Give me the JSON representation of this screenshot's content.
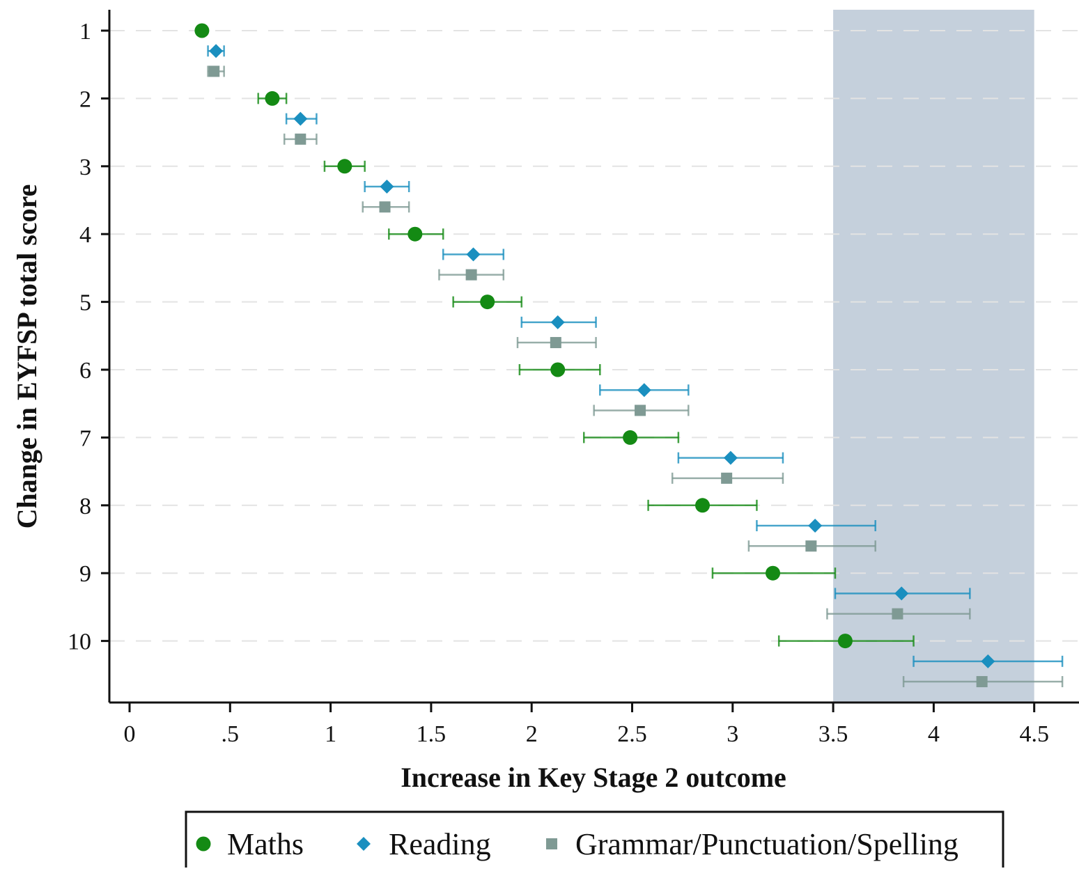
{
  "chart_data": {
    "type": "scatter",
    "subtype": "coefficient-plot-with-confidence-intervals",
    "title": "",
    "xlabel": "Increase in Key Stage 2 outcome",
    "ylabel": "Change in EYFSP total score",
    "xlim": [
      -0.1,
      4.65
    ],
    "ylim": [
      0.7,
      10.9
    ],
    "x_ticks": [
      0,
      0.5,
      1,
      1.5,
      2,
      2.5,
      3,
      3.5,
      4,
      4.5
    ],
    "x_tick_labels": [
      "0",
      ".5",
      "1",
      "1.5",
      "2",
      "2.5",
      "3",
      "3.5",
      "4",
      "4.5"
    ],
    "y_ticks": [
      1,
      2,
      3,
      4,
      5,
      6,
      7,
      8,
      9,
      10
    ],
    "y_tick_labels": [
      "1",
      "2",
      "3",
      "4",
      "5",
      "6",
      "7",
      "8",
      "9",
      "10"
    ],
    "grid": "horizontal dashed",
    "shaded_region": {
      "x": [
        3.5,
        4.5
      ],
      "color": "#c5d0dc"
    },
    "legend_position": "bottom",
    "categories": [
      1,
      2,
      3,
      4,
      5,
      6,
      7,
      8,
      9,
      10
    ],
    "series": [
      {
        "name": "Maths",
        "marker": "circle",
        "color": "#148a14",
        "y_offset": 0.0,
        "values": [
          0.36,
          0.71,
          1.07,
          1.42,
          1.78,
          2.13,
          2.49,
          2.85,
          3.2,
          3.56
        ],
        "ci_low": [
          0.34,
          0.64,
          0.97,
          1.29,
          1.61,
          1.94,
          2.26,
          2.58,
          2.9,
          3.23
        ],
        "ci_high": [
          0.38,
          0.78,
          1.17,
          1.56,
          1.95,
          2.34,
          2.73,
          3.12,
          3.51,
          3.9
        ]
      },
      {
        "name": "Reading",
        "marker": "diamond",
        "color": "#1a8fbf",
        "y_offset": 0.3,
        "values": [
          0.43,
          0.85,
          1.28,
          1.71,
          2.13,
          2.56,
          2.99,
          3.41,
          3.84,
          4.27
        ],
        "ci_low": [
          0.39,
          0.78,
          1.17,
          1.56,
          1.95,
          2.34,
          2.73,
          3.12,
          3.51,
          3.9
        ],
        "ci_high": [
          0.47,
          0.93,
          1.39,
          1.86,
          2.32,
          2.78,
          3.25,
          3.71,
          4.18,
          4.64
        ]
      },
      {
        "name": "Grammar/Punctuation/Spelling",
        "marker": "square",
        "color": "#7f9a94",
        "y_offset": 0.6,
        "values": [
          0.42,
          0.85,
          1.27,
          1.7,
          2.12,
          2.54,
          2.97,
          3.39,
          3.82,
          4.24
        ],
        "ci_low": [
          0.39,
          0.77,
          1.16,
          1.54,
          1.93,
          2.31,
          2.7,
          3.08,
          3.47,
          3.85
        ],
        "ci_high": [
          0.47,
          0.93,
          1.39,
          1.86,
          2.32,
          2.78,
          3.25,
          3.71,
          4.18,
          4.64
        ]
      }
    ]
  }
}
